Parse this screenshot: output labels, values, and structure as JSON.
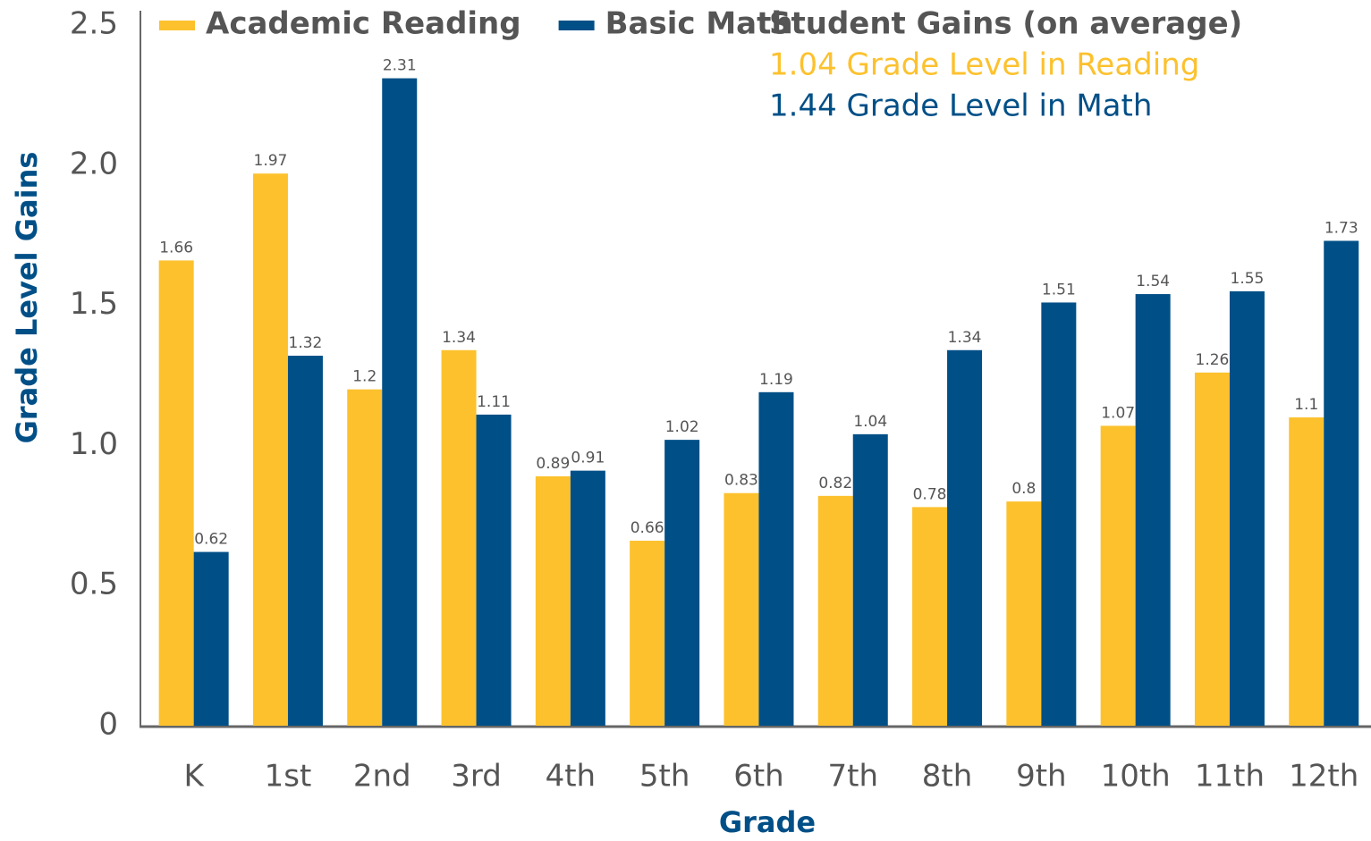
{
  "chart_data": {
    "type": "bar",
    "title": "Student Gains (on average)",
    "annotations": [
      {
        "text": "1.04 Grade Level in Reading",
        "color": "#fcc12d"
      },
      {
        "text": "1.44 Grade Level in Math",
        "color": "#004f87"
      }
    ],
    "x_label": "Grade",
    "y_label": "Grade Level Gains",
    "categories": [
      "K",
      "1st",
      "2nd",
      "3rd",
      "4th",
      "5th",
      "6th",
      "7th",
      "8th",
      "9th",
      "10th",
      "11th",
      "12th"
    ],
    "series": [
      {
        "name": "Academic Reading",
        "color": "#fcc12d",
        "values": [
          1.66,
          1.97,
          1.2,
          1.34,
          0.89,
          0.66,
          0.83,
          0.82,
          0.78,
          0.8,
          1.07,
          1.26,
          1.1
        ]
      },
      {
        "name": "Basic Math",
        "color": "#004f87",
        "values": [
          0.62,
          1.32,
          2.31,
          1.11,
          0.91,
          1.02,
          1.19,
          1.04,
          1.34,
          1.51,
          1.54,
          1.55,
          1.73
        ]
      }
    ],
    "ylim": [
      0,
      2.5
    ],
    "yticks": [
      0,
      {
        "value": 0.5,
        "label": "0.5"
      },
      {
        "value": 1,
        "label": "1.0"
      },
      {
        "value": 1.5,
        "label": "1.5"
      },
      {
        "value": 2,
        "label": "2.0"
      },
      {
        "value": 2.5,
        "label": "2.5"
      }
    ],
    "grid": false,
    "legend": "top"
  }
}
